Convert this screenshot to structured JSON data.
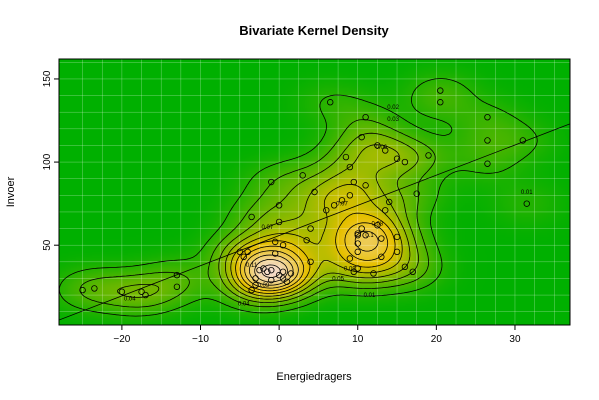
{
  "chart_data": {
    "type": "heatmap",
    "title": "Bivariate Kernel Density",
    "xlabel": "Energiedragers",
    "ylabel": "Invoer",
    "xlim": [
      -28,
      37
    ],
    "ylim": [
      2,
      162
    ],
    "x_ticks": [
      -20,
      -10,
      0,
      10,
      20,
      30
    ],
    "y_ticks": [
      50,
      100,
      150
    ],
    "grid": true,
    "colors": {
      "low": "#00b000",
      "mid": "#e8c000",
      "high": "#f5dccd",
      "contour": "#000000",
      "grid": "#ffffff"
    },
    "contour_levels": [
      0.01,
      0.02,
      0.03,
      0.04,
      0.05,
      0.06,
      0.07,
      0.08,
      0.09,
      0.1,
      0.11
    ],
    "contour_labels": [
      {
        "text": "0.01",
        "x": 31.5,
        "y": 82
      },
      {
        "text": "0.01",
        "x": 11.5,
        "y": 20
      },
      {
        "text": "0.02",
        "x": 14.5,
        "y": 133
      },
      {
        "text": "0.03",
        "x": 14.5,
        "y": 126
      },
      {
        "text": "0.04",
        "x": -19,
        "y": 18
      },
      {
        "text": "0.04",
        "x": -4.5,
        "y": 15
      },
      {
        "text": "0.05",
        "x": 7.5,
        "y": 30
      },
      {
        "text": "0.06",
        "x": 13,
        "y": 109
      },
      {
        "text": "0.07",
        "x": -1.5,
        "y": 61
      },
      {
        "text": "0.07",
        "x": 8,
        "y": 75
      },
      {
        "text": "0.08",
        "x": 12.5,
        "y": 63
      },
      {
        "text": "0.09",
        "x": -2,
        "y": 26
      },
      {
        "text": "0.1",
        "x": 11.5,
        "y": 56
      },
      {
        "text": "0.11",
        "x": -3.5,
        "y": 38
      },
      {
        "text": "0.09",
        "x": 9,
        "y": 36
      }
    ],
    "points": [
      {
        "x": -25,
        "y": 23
      },
      {
        "x": -23.5,
        "y": 24
      },
      {
        "x": -20,
        "y": 22
      },
      {
        "x": -17.5,
        "y": 22
      },
      {
        "x": -17,
        "y": 20
      },
      {
        "x": -13,
        "y": 25
      },
      {
        "x": -13,
        "y": 32
      },
      {
        "x": -5,
        "y": 46
      },
      {
        "x": -4.5,
        "y": 43
      },
      {
        "x": -4,
        "y": 46
      },
      {
        "x": -3,
        "y": 26
      },
      {
        "x": -3,
        "y": 30
      },
      {
        "x": -3.5,
        "y": 23
      },
      {
        "x": -2.5,
        "y": 35
      },
      {
        "x": -2,
        "y": 36
      },
      {
        "x": -1.5,
        "y": 34
      },
      {
        "x": -1,
        "y": 35
      },
      {
        "x": -1,
        "y": 29
      },
      {
        "x": -0.5,
        "y": 45
      },
      {
        "x": -0.5,
        "y": 52
      },
      {
        "x": 0,
        "y": 32
      },
      {
        "x": 0.5,
        "y": 30
      },
      {
        "x": 0.5,
        "y": 34
      },
      {
        "x": 0.5,
        "y": 50
      },
      {
        "x": 1,
        "y": 28
      },
      {
        "x": 1.5,
        "y": 33
      },
      {
        "x": -1,
        "y": 88
      },
      {
        "x": -3.5,
        "y": 67
      },
      {
        "x": 0,
        "y": 74
      },
      {
        "x": 0,
        "y": 64
      },
      {
        "x": 3,
        "y": 92
      },
      {
        "x": 3.5,
        "y": 53
      },
      {
        "x": 4,
        "y": 40
      },
      {
        "x": 4,
        "y": 60
      },
      {
        "x": 4.5,
        "y": 82
      },
      {
        "x": 6,
        "y": 71
      },
      {
        "x": 6.5,
        "y": 136
      },
      {
        "x": 7,
        "y": 74
      },
      {
        "x": 8,
        "y": 77
      },
      {
        "x": 8.5,
        "y": 103
      },
      {
        "x": 9,
        "y": 97
      },
      {
        "x": 9,
        "y": 80
      },
      {
        "x": 9,
        "y": 42
      },
      {
        "x": 9.5,
        "y": 88
      },
      {
        "x": 9.5,
        "y": 34
      },
      {
        "x": 10,
        "y": 57
      },
      {
        "x": 10,
        "y": 56
      },
      {
        "x": 10,
        "y": 51
      },
      {
        "x": 10,
        "y": 46
      },
      {
        "x": 10,
        "y": 36
      },
      {
        "x": 10.5,
        "y": 115
      },
      {
        "x": 10.5,
        "y": 60
      },
      {
        "x": 11,
        "y": 127
      },
      {
        "x": 11,
        "y": 86
      },
      {
        "x": 11,
        "y": 56
      },
      {
        "x": 12,
        "y": 33
      },
      {
        "x": 12.5,
        "y": 110
      },
      {
        "x": 12.5,
        "y": 62
      },
      {
        "x": 13,
        "y": 54
      },
      {
        "x": 13,
        "y": 43
      },
      {
        "x": 13.5,
        "y": 107
      },
      {
        "x": 13.5,
        "y": 71
      },
      {
        "x": 14,
        "y": 76
      },
      {
        "x": 15,
        "y": 102
      },
      {
        "x": 15,
        "y": 55
      },
      {
        "x": 15,
        "y": 46
      },
      {
        "x": 16,
        "y": 100
      },
      {
        "x": 16,
        "y": 37
      },
      {
        "x": 17,
        "y": 34
      },
      {
        "x": 17.5,
        "y": 81
      },
      {
        "x": 19,
        "y": 104
      },
      {
        "x": 20.5,
        "y": 143
      },
      {
        "x": 20.5,
        "y": 136
      },
      {
        "x": 26.5,
        "y": 127
      },
      {
        "x": 26.5,
        "y": 113
      },
      {
        "x": 26.5,
        "y": 99
      },
      {
        "x": 31,
        "y": 113
      },
      {
        "x": 31.5,
        "y": 75
      }
    ],
    "regression_line": [
      {
        "x": -28,
        "y": 5
      },
      {
        "x": 37,
        "y": 123
      }
    ]
  }
}
